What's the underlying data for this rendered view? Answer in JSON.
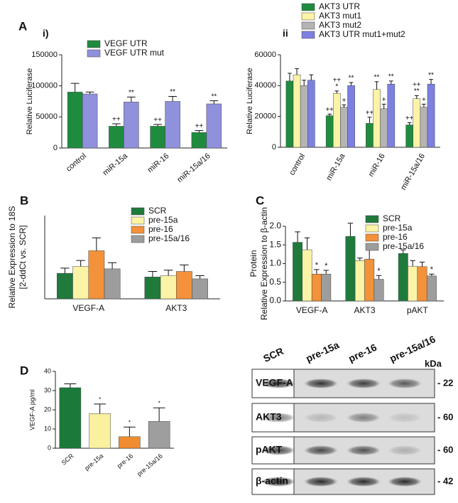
{
  "chart_data": [
    {
      "type": "bar",
      "panel": "A",
      "sublabel": "i)",
      "ylabel": "Relative Luciferase",
      "categories": [
        "control",
        "miR-15a",
        "miR-16",
        "miR-15a/16"
      ],
      "series": [
        {
          "name": "VEGF UTR",
          "color": "#1f8b3f",
          "values": [
            90000,
            35000,
            35000,
            25000
          ],
          "errors": [
            14000,
            4000,
            3000,
            3000
          ],
          "marks": [
            null,
            "++",
            "++",
            "++"
          ]
        },
        {
          "name": "VEGF UTR mut",
          "color": "#8f91dc",
          "values": [
            87000,
            74000,
            75000,
            71000
          ],
          "errors": [
            3000,
            8000,
            8000,
            5000
          ],
          "marks": [
            null,
            "**",
            "**",
            "**"
          ]
        }
      ],
      "ylim": [
        0,
        150000
      ],
      "yticks": [
        0,
        50000,
        100000,
        150000
      ]
    },
    {
      "type": "bar",
      "sublabel": "ii",
      "ylabel": "Relative Luciferase",
      "categories": [
        "control",
        "miR-15a",
        "miR-16",
        "miR-15a/16"
      ],
      "series": [
        {
          "name": "AKT3 UTR",
          "color": "#1f8b3f",
          "values": [
            43000,
            20500,
            15500,
            14500
          ],
          "errors": [
            5000,
            1000,
            4000,
            1500
          ],
          "marks": [
            null,
            "++",
            "++",
            "++"
          ]
        },
        {
          "name": "AKT3 mut1",
          "color": "#fbf3a6",
          "values": [
            47000,
            35000,
            37500,
            31500
          ],
          "errors": [
            4000,
            1500,
            5000,
            2000
          ],
          "marks": [
            null,
            [
              "++",
              "*"
            ],
            [
              "**"
            ],
            [
              "++",
              "**"
            ]
          ]
        },
        {
          "name": "AKT3 mut2",
          "color": "#b4b4b4",
          "values": [
            40000,
            26000,
            25000,
            26000
          ],
          "errors": [
            3500,
            1500,
            3000,
            2000
          ],
          "marks": [
            null,
            "+",
            "+",
            "+"
          ]
        },
        {
          "name": "AKT3 UTR mut1+mut2",
          "color": "#7d80e0",
          "values": [
            43500,
            40000,
            41000,
            41000
          ],
          "errors": [
            3500,
            2000,
            2000,
            3000
          ],
          "marks": [
            null,
            "**",
            "**",
            "**"
          ]
        }
      ],
      "ylim": [
        0,
        60000
      ],
      "yticks": [
        0,
        20000,
        40000,
        60000
      ]
    },
    {
      "type": "bar",
      "panel": "B",
      "ylabel": [
        "Relative Expression to 18S",
        "[2-ddCt vs. SCR]"
      ],
      "categories": [
        "VEGF-A",
        "AKT3"
      ],
      "series": [
        {
          "name": "SCR",
          "color": "#1f7a3c",
          "values": [
            1.38,
            1.18
          ],
          "errors": [
            0.28,
            0.3
          ]
        },
        {
          "name": "pre-15a",
          "color": "#fbf3a6",
          "values": [
            1.75,
            1.25
          ],
          "errors": [
            0.32,
            0.3
          ]
        },
        {
          "name": "pre-16",
          "color": "#f3923a",
          "values": [
            2.6,
            1.48
          ],
          "errors": [
            0.7,
            0.35
          ]
        },
        {
          "name": "pre-15a/16",
          "color": "#9d9d9d",
          "values": [
            1.62,
            1.08
          ],
          "errors": [
            0.33,
            0.17
          ]
        }
      ],
      "ylim": [
        0,
        4.5
      ]
    },
    {
      "type": "bar",
      "panel": "C",
      "ylabel": [
        "Protein",
        "Relative Expression to β-actin"
      ],
      "categories": [
        "VEGF-A",
        "AKT3",
        "pAKT"
      ],
      "series": [
        {
          "name": "SCR",
          "color": "#1f7a3c",
          "values": [
            1.57,
            1.73,
            1.27
          ],
          "errors": [
            0.28,
            0.35,
            0.1
          ]
        },
        {
          "name": "pre-15a",
          "color": "#fbf3a6",
          "values": [
            1.37,
            1.08,
            0.93
          ],
          "errors": [
            0.32,
            0.07,
            0.15
          ]
        },
        {
          "name": "pre-16",
          "color": "#f3923a",
          "values": [
            0.72,
            1.12,
            0.92
          ],
          "errors": [
            0.12,
            0.32,
            0.12
          ],
          "marks": [
            "*",
            null,
            null
          ]
        },
        {
          "name": "pre-15a/16",
          "color": "#9d9d9d",
          "values": [
            0.72,
            0.58,
            0.67
          ],
          "errors": [
            0.1,
            0.1,
            0.05
          ],
          "marks": [
            "*",
            "*",
            "*"
          ]
        }
      ],
      "ylim": [
        0,
        2
      ],
      "yticks": [
        {
          "value": 0,
          "label": "0.0"
        },
        0.5,
        {
          "value": 1,
          "label": "1.0"
        },
        1.5,
        {
          "value": 2,
          "label": "2.0"
        }
      ]
    },
    {
      "type": "bar",
      "panel": "D",
      "ylabel": "VEGF-A pg/ml",
      "categories": [
        "SCR",
        "pre-15a",
        "pre-16",
        "pre-15a/16"
      ],
      "values": [
        31.5,
        18,
        6,
        14
      ],
      "errors": [
        2,
        5,
        5,
        7
      ],
      "marks": [
        null,
        "*",
        "*",
        "*"
      ],
      "colors": [
        "#1b7a3a",
        "#f9f0a0",
        "#f08c30",
        "#9e9e9e"
      ],
      "ylim": [
        0,
        40
      ],
      "yticks": [
        0,
        10,
        20,
        30,
        40
      ]
    }
  ],
  "blot": {
    "lanes": [
      "SCR",
      "pre-15a",
      "pre-16",
      "pre-15a/16"
    ],
    "unit": "kDa",
    "rows": [
      {
        "label": "VEGF-A",
        "kda": "- 22"
      },
      {
        "label": "AKT3",
        "kda": "- 60"
      },
      {
        "label": "pAKT",
        "kda": "- 60"
      },
      {
        "label": "β-actin",
        "kda": "- 42"
      }
    ]
  }
}
